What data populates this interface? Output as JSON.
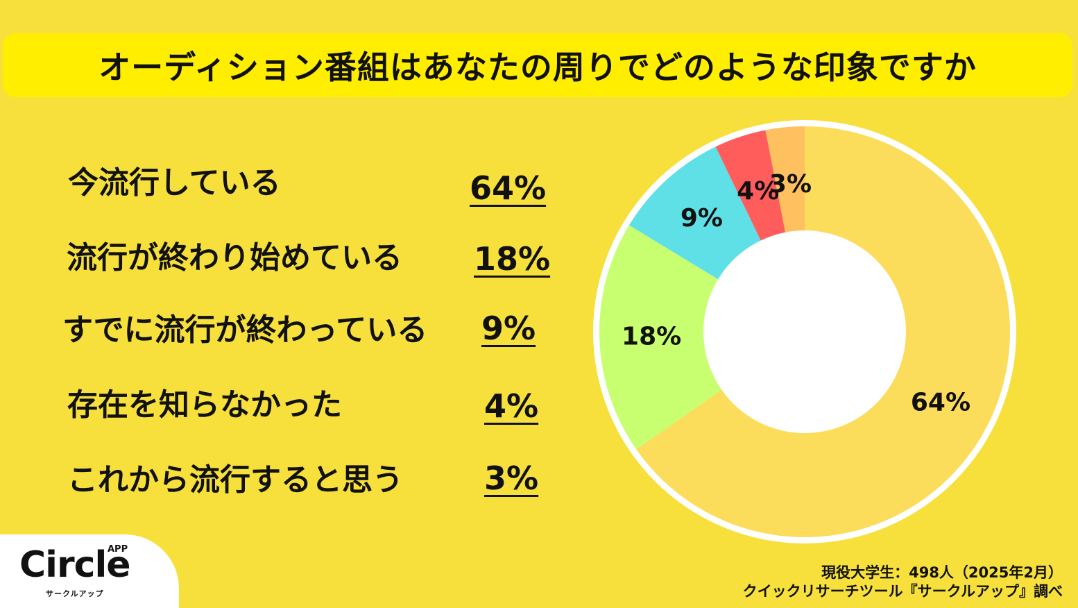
{
  "title": "オーディション番組はあなたの周りでどのような印象ですか",
  "chart_data": {
    "type": "pie",
    "style": "donut",
    "categories": [
      "今流行している",
      "流行が終わり始めている",
      "すでに流行が終わっている",
      "存在を知らなかった",
      "これから流行すると思う"
    ],
    "values": [
      64,
      18,
      9,
      4,
      3
    ],
    "value_labels": [
      "64%",
      "18%",
      "9%",
      "4%",
      "3%"
    ],
    "colors": [
      "#fcdc5b",
      "#c7ff70",
      "#5ee0e6",
      "#ff5c5c",
      "#ffc060"
    ]
  },
  "legend_rows": [
    {
      "label": "今流行している",
      "pct": "64%"
    },
    {
      "label": "流行が終わり始めている",
      "pct": "18%"
    },
    {
      "label": "すでに流行が終わっている",
      "pct": "9%"
    },
    {
      "label": "存在を知らなかった",
      "pct": "4%"
    },
    {
      "label": "これから流行すると思う",
      "pct": "3%"
    }
  ],
  "logo": {
    "name": "Circle",
    "badge": "APP",
    "subtitle": "サークルアップ"
  },
  "source": {
    "line1": "現役大学生：498人（2025年2月）",
    "line2": "クイックリサーチツール『サークルアップ』調べ"
  }
}
